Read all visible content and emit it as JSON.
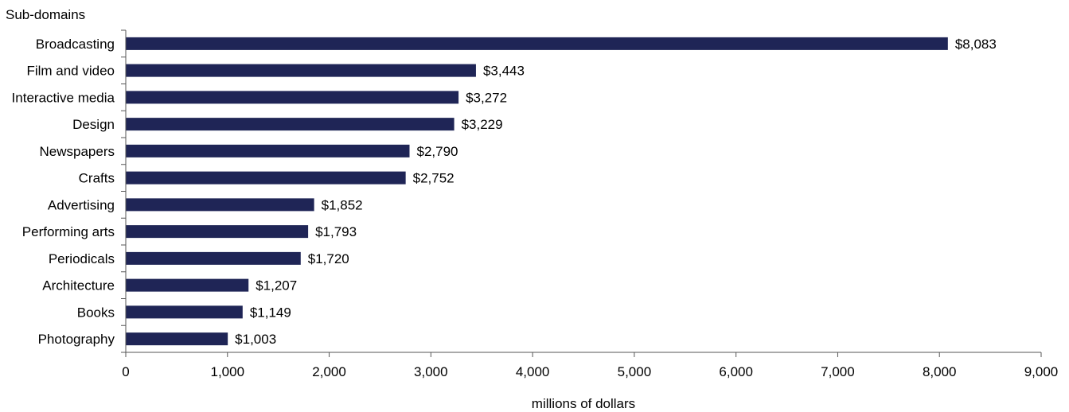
{
  "chart_data": {
    "type": "bar",
    "orientation": "horizontal",
    "title": "",
    "ylabel": "Sub-domains",
    "xlabel": "millions of dollars",
    "xlim": [
      0,
      9000
    ],
    "xticks": [
      0,
      1000,
      2000,
      3000,
      4000,
      5000,
      6000,
      7000,
      8000,
      9000
    ],
    "xtick_labels": [
      "0",
      "1,000",
      "2,000",
      "3,000",
      "4,000",
      "5,000",
      "6,000",
      "7,000",
      "8,000",
      "9,000"
    ],
    "grid": false,
    "bar_color": "#1f2556",
    "categories": [
      "Broadcasting",
      "Film and video",
      "Interactive media",
      "Design",
      "Newspapers",
      "Crafts",
      "Advertising",
      "Performing arts",
      "Periodicals",
      "Architecture",
      "Books",
      "Photography"
    ],
    "values": [
      8083,
      3443,
      3272,
      3229,
      2790,
      2752,
      1852,
      1793,
      1720,
      1207,
      1149,
      1003
    ],
    "value_labels": [
      "$8,083",
      "$3,443",
      "$3,272",
      "$3,229",
      "$2,790",
      "$2,752",
      "$1,852",
      "$1,793",
      "$1,720",
      "$1,207",
      "$1,149",
      "$1,003"
    ]
  }
}
